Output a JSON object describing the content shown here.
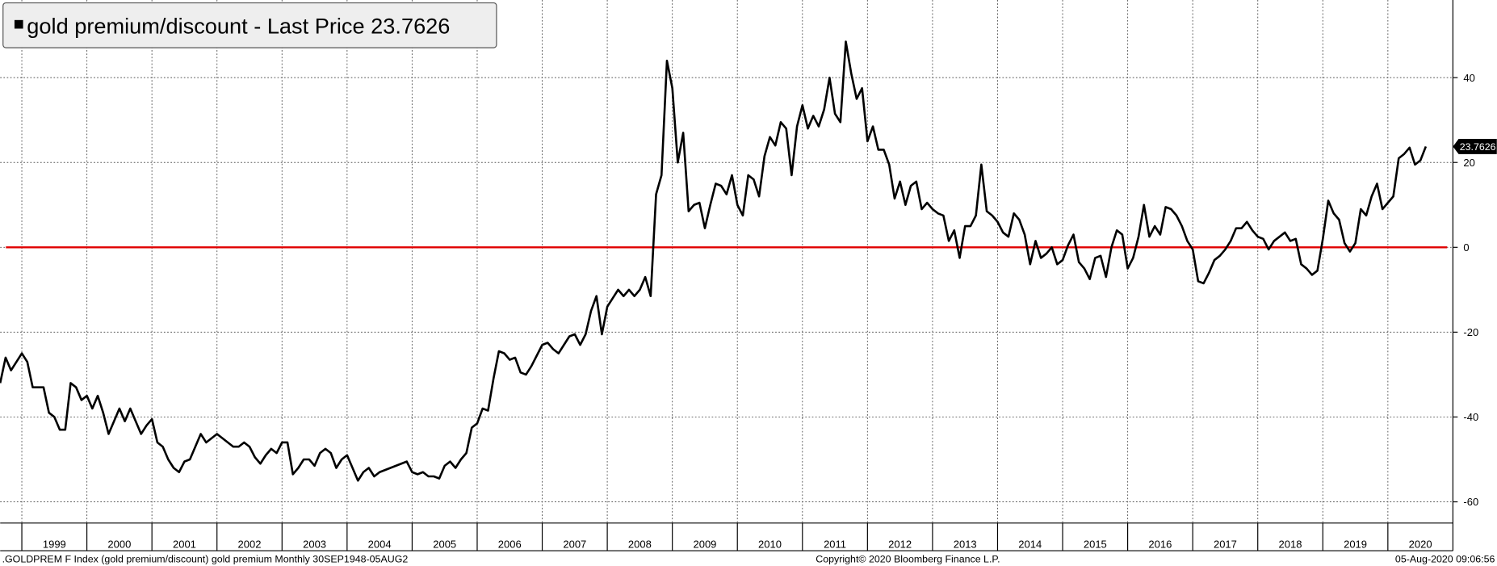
{
  "chart_data": {
    "type": "line",
    "title": "gold premium/discount - Last Price 23.7626",
    "footer_left": ".GOLDPREM F Index (gold premium/discount) gold premium  Monthly 30SEP1948-05AUG2",
    "footer_center": "Copyright© 2020 Bloomberg Finance L.P.",
    "footer_right": "05-Aug-2020 09:06:56",
    "xlim": [
      1998.667,
      2021
    ],
    "xticks": [
      1999,
      2000,
      2001,
      2002,
      2003,
      2004,
      2005,
      2006,
      2007,
      2008,
      2009,
      2010,
      2011,
      2012,
      2013,
      2014,
      2015,
      2016,
      2017,
      2018,
      2019,
      2020
    ],
    "ylim": [
      -65,
      58.3
    ],
    "yticks": [
      40,
      20,
      0,
      -20,
      -40,
      -60
    ],
    "grid": true,
    "reference_line": {
      "value": 0,
      "color": "#e00000"
    },
    "last_price": {
      "value": 23.7626,
      "label": "23.7626"
    },
    "series": [
      {
        "name": "gold premium/discount",
        "color": "#000000",
        "values": [
          -32,
          -26,
          -29,
          -27,
          -25,
          -27,
          -33,
          -33,
          -33,
          -39,
          -40,
          -43,
          -43,
          -32,
          -33,
          -36,
          -35,
          -38,
          -35,
          -39,
          -44,
          -41,
          -38,
          -41,
          -38,
          -41,
          -44,
          -42,
          -40.5,
          -46,
          -47,
          -50,
          -52,
          -53,
          -50.5,
          -50,
          -47,
          -44,
          -46,
          -45,
          -44,
          -45,
          -46,
          -47,
          -47,
          -46,
          -47,
          -49.5,
          -51,
          -49,
          -47.5,
          -48.5,
          -46,
          -46,
          -53.5,
          -52,
          -50,
          -50,
          -51.5,
          -48.5,
          -47.5,
          -48.5,
          -52,
          -50,
          -49,
          -52,
          -55,
          -53,
          -52,
          -54,
          -53,
          -52.5,
          -52,
          -51.5,
          -51,
          -50.5,
          -53,
          -53.5,
          -53,
          -54,
          -54,
          -54.5,
          -51.5,
          -50.5,
          -52,
          -50,
          -48.5,
          -42.5,
          -41.5,
          -38,
          -38.5,
          -31,
          -24.5,
          -25,
          -26.5,
          -26,
          -29.5,
          -30,
          -28,
          -25.5,
          -23,
          -22.5,
          -24,
          -25,
          -23,
          -21,
          -20.5,
          -23,
          -20.5,
          -15,
          -11.5,
          -20.5,
          -14,
          -12,
          -10,
          -11.5,
          -10,
          -11.5,
          -10,
          -7,
          -11.5,
          12.5,
          17,
          44,
          37.5,
          20,
          27,
          8.5,
          10,
          10.5,
          4.5,
          10,
          15,
          14.5,
          12.5,
          17,
          10,
          7.5,
          17,
          16,
          12,
          21.5,
          26,
          24,
          29.5,
          28,
          17,
          28.5,
          33.5,
          28,
          31,
          28.5,
          32.5,
          40,
          31.5,
          29.5,
          48.5,
          41,
          35,
          37.5,
          25,
          28.5,
          23,
          23,
          19.5,
          11.5,
          15.5,
          10,
          14.5,
          15.5,
          9,
          10.5,
          9,
          8,
          7.5,
          1.5,
          4,
          -2.5,
          5,
          5,
          7.5,
          19.5,
          8.5,
          7.5,
          6,
          3.5,
          2.5,
          8,
          6.5,
          3,
          -4,
          1.5,
          -2.5,
          -1.5,
          0,
          -4,
          -3,
          0.5,
          3,
          -3.5,
          -5,
          -7.5,
          -2.5,
          -2,
          -7,
          0,
          4,
          3,
          -5,
          -2.5,
          2.5,
          10,
          2.5,
          5,
          3,
          9.5,
          9,
          7.5,
          5,
          1.5,
          -0.5,
          -8,
          -8.5,
          -6,
          -3,
          -2,
          -0.5,
          1.5,
          4.5,
          4.5,
          6,
          4,
          2.5,
          2,
          -0.5,
          1.5,
          2.5,
          3.5,
          1.5,
          2,
          -4,
          -5,
          -6.5,
          -5.5,
          2,
          11,
          8,
          6.5,
          1,
          -1,
          1,
          9,
          7.5,
          12,
          15,
          9,
          10.5,
          12,
          21,
          22,
          23.5,
          19.5,
          20.5,
          23.7626
        ]
      }
    ]
  }
}
